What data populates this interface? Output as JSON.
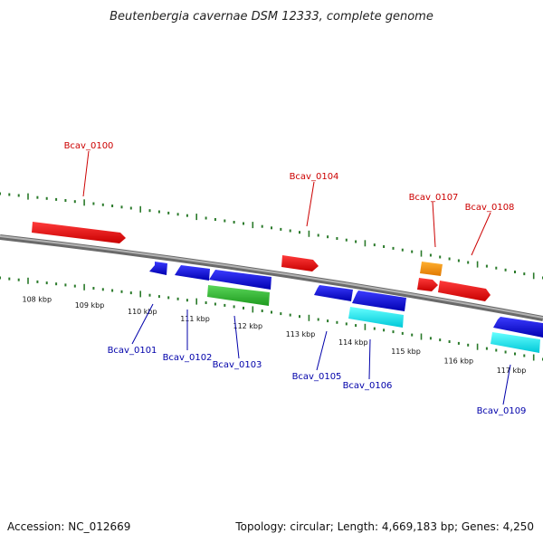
{
  "title": "Beutenbergia cavernae DSM 12333, complete genome",
  "footer": {
    "accession": "Accession: NC_012669",
    "topology": "Topology: circular; Length: 4,669,183 bp; Genes: 4,250"
  },
  "scale": {
    "start_kbp": 107.3,
    "end_kbp": 117.6,
    "unit": "kbp",
    "labels": [
      "108 kbp",
      "109 kbp",
      "110 kbp",
      "111 kbp",
      "112 kbp",
      "113 kbp",
      "114 kbp",
      "115 kbp",
      "116 kbp",
      "117 kbp"
    ]
  },
  "colors": {
    "forward_label": "#cc0000",
    "reverse_label": "#0000aa",
    "tick": "#2a7a2a",
    "backbone": "#888888"
  },
  "genes": [
    {
      "label": "Bcav_0100",
      "strand": "forward"
    },
    {
      "label": "Bcav_0101",
      "strand": "reverse"
    },
    {
      "label": "Bcav_0102",
      "strand": "reverse"
    },
    {
      "label": "Bcav_0103",
      "strand": "reverse"
    },
    {
      "label": "Bcav_0104",
      "strand": "forward"
    },
    {
      "label": "Bcav_0105",
      "strand": "reverse"
    },
    {
      "label": "Bcav_0106",
      "strand": "reverse"
    },
    {
      "label": "Bcav_0107",
      "strand": "forward"
    },
    {
      "label": "Bcav_0108",
      "strand": "forward"
    },
    {
      "label": "Bcav_0109",
      "strand": "reverse"
    }
  ]
}
